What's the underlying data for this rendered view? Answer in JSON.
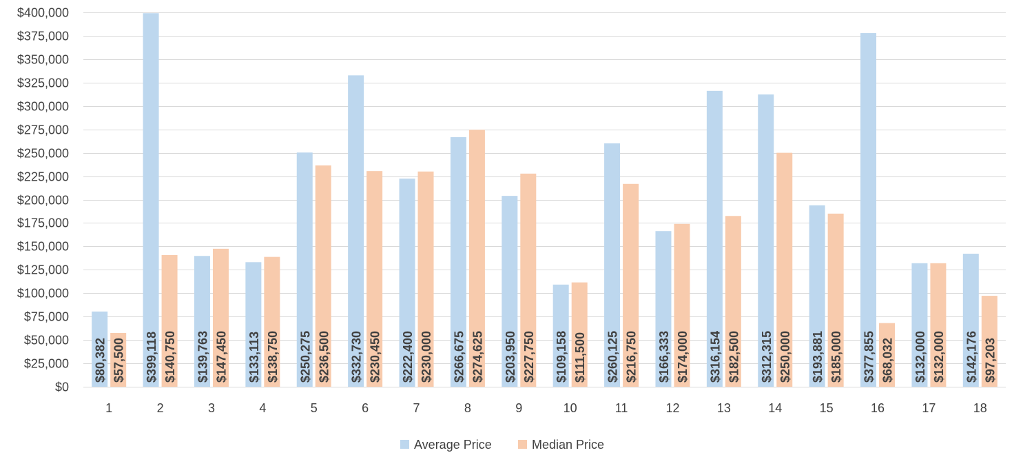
{
  "chart_data": {
    "type": "bar",
    "categories": [
      "1",
      "2",
      "3",
      "4",
      "5",
      "6",
      "7",
      "8",
      "9",
      "10",
      "11",
      "12",
      "13",
      "14",
      "15",
      "16",
      "17",
      "18"
    ],
    "series": [
      {
        "name": "Average Price",
        "color": "#bdd7ee",
        "values": [
          80382,
          399118,
          139763,
          133113,
          250275,
          332730,
          222400,
          266675,
          203950,
          109158,
          260125,
          166333,
          316154,
          312315,
          193881,
          377855,
          132000,
          142176
        ],
        "labels": [
          "$80,382",
          "$399,118",
          "$139,763",
          "$133,113",
          "$250,275",
          "$332,730",
          "$222,400",
          "$266,675",
          "$203,950",
          "$109,158",
          "$260,125",
          "$166,333",
          "$316,154",
          "$312,315",
          "$193,881",
          "$377,855",
          "$132,000",
          "$142,176"
        ]
      },
      {
        "name": "Median Price",
        "color": "#f8cbad",
        "values": [
          57500,
          140750,
          147450,
          138750,
          236500,
          230450,
          230000,
          274625,
          227750,
          111500,
          216750,
          174000,
          182500,
          250000,
          185000,
          68032,
          132000,
          97203
        ],
        "labels": [
          "$57,500",
          "$140,750",
          "$147,450",
          "$138,750",
          "$236,500",
          "$230,450",
          "$230,000",
          "$274,625",
          "$227,750",
          "$111,500",
          "$216,750",
          "$174,000",
          "$182,500",
          "$250,000",
          "$185,000",
          "$68,032",
          "$132,000",
          "$97,203"
        ]
      }
    ],
    "ylim": [
      0,
      400000
    ],
    "y_ticks": [
      0,
      25000,
      50000,
      75000,
      100000,
      125000,
      150000,
      175000,
      200000,
      225000,
      250000,
      275000,
      300000,
      325000,
      350000,
      375000,
      400000
    ],
    "y_tick_labels": [
      "$0",
      "$25,000",
      "$50,000",
      "$75,000",
      "$100,000",
      "$125,000",
      "$150,000",
      "$175,000",
      "$200,000",
      "$225,000",
      "$250,000",
      "$275,000",
      "$300,000",
      "$325,000",
      "$350,000",
      "$375,000",
      "$400,000"
    ],
    "title": "",
    "xlabel": "",
    "ylabel": "",
    "grid": true,
    "legend_position": "bottom",
    "colors": {
      "grid": "#d9d9d9",
      "axis_text": "#404040"
    }
  }
}
